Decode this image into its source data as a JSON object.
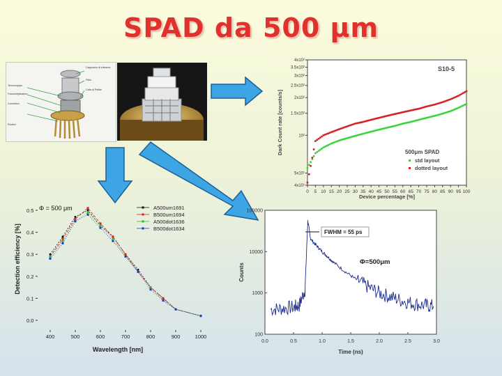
{
  "slide": {
    "title": "SPAD da 500 μm",
    "photo_labels": {
      "l1": "Cappuccio di chiusura",
      "l2": "Filtro",
      "l3": "Cella di Peltier",
      "l4": "Termocoppia",
      "l5": "Fotomoltiplicatore",
      "l6": "Connettori",
      "l7": "Reofori"
    },
    "colors": {
      "title": "#e0322c",
      "arrow_fill": "#3da5e4",
      "arrow_stroke": "#1d5f96",
      "navy": "#1a2a8c",
      "red": "#d42020",
      "green": "#3ad23a"
    },
    "icons": [
      "arrow-right-icon",
      "arrow-down-icon",
      "arrow-diagonal-icon"
    ]
  },
  "chart_data": [
    {
      "type": "scatter",
      "annotation": "S10-5",
      "xlabel": "Device percentage [%]",
      "ylabel": "Dark Count rate [counts/s]",
      "xlim": [
        0,
        100
      ],
      "ylim": [
        40,
        400
      ],
      "log_y": true,
      "x_ticks": [
        0,
        5,
        10,
        15,
        20,
        25,
        30,
        35,
        40,
        45,
        50,
        55,
        60,
        65,
        70,
        75,
        80,
        85,
        90,
        95,
        100
      ],
      "y_ticks": [
        {
          "v": 40,
          "label": "4x10¹"
        },
        {
          "v": 50,
          "label": "5x10¹"
        },
        {
          "v": 100,
          "label": "10²"
        },
        {
          "v": 150,
          "label": "1.5x10²"
        },
        {
          "v": 200,
          "label": "2x10²"
        },
        {
          "v": 250,
          "label": "2.5x10²"
        },
        {
          "v": 300,
          "label": "3x10²"
        },
        {
          "v": 350,
          "label": "3.5x10²"
        },
        {
          "v": 400,
          "label": "4x10²"
        }
      ],
      "legend_title": "500μm SPAD",
      "legend_position": "bottom-right",
      "series": [
        {
          "name": "std layout",
          "color": "#3ad23a",
          "x": [
            0,
            5,
            10,
            15,
            20,
            25,
            30,
            35,
            40,
            45,
            50,
            55,
            60,
            65,
            70,
            75,
            80,
            85,
            90,
            95,
            100
          ],
          "y": [
            55,
            72,
            80,
            86,
            91,
            95,
            99,
            103,
            107,
            111,
            115,
            119,
            124,
            128,
            133,
            138,
            143,
            149,
            156,
            166,
            178
          ]
        },
        {
          "name": "dotted layout",
          "color": "#d42020",
          "x": [
            0,
            5,
            10,
            15,
            20,
            25,
            30,
            35,
            40,
            45,
            50,
            55,
            60,
            65,
            70,
            75,
            80,
            85,
            90,
            95,
            100
          ],
          "y": [
            42,
            90,
            100,
            106,
            112,
            118,
            124,
            128,
            133,
            138,
            143,
            148,
            153,
            158,
            163,
            170,
            176,
            184,
            194,
            207,
            225
          ]
        }
      ]
    },
    {
      "type": "line",
      "annotation": "Φ = 500 μm",
      "xlabel": "Wavelength [nm]",
      "ylabel": "Detection efficiency [%]",
      "xlim": [
        350,
        1000
      ],
      "ylim": [
        0,
        0.5
      ],
      "x_ticks": [
        400,
        500,
        600,
        700,
        800,
        900,
        1000
      ],
      "y_ticks": [
        0.0,
        0.1,
        0.2,
        0.3,
        0.4,
        0.5
      ],
      "y_tick_labels": [
        "0.0",
        "0.1",
        "0.2",
        "0.3",
        "0.4",
        "0.5"
      ],
      "legend_position": "top-right",
      "series": [
        {
          "name": "A500um1691",
          "color": "#111111",
          "x": [
            400,
            450,
            500,
            550,
            600,
            650,
            700,
            750,
            800,
            850,
            900,
            1000
          ],
          "y": [
            0.3,
            0.38,
            0.47,
            0.5,
            0.43,
            0.38,
            0.3,
            0.23,
            0.15,
            0.1,
            0.05,
            0.02
          ]
        },
        {
          "name": "B500um1694",
          "color": "#d42020",
          "x": [
            400,
            450,
            500,
            550,
            600,
            650,
            700,
            750,
            800,
            850,
            900,
            1000
          ],
          "y": [
            0.29,
            0.37,
            0.46,
            0.51,
            0.44,
            0.38,
            0.3,
            0.22,
            0.15,
            0.1,
            0.05,
            0.02
          ]
        },
        {
          "name": "A500dot1636",
          "color": "#2db52d",
          "x": [
            400,
            450,
            500,
            550,
            600,
            650,
            700,
            750,
            800,
            850,
            900,
            1000
          ],
          "y": [
            0.29,
            0.36,
            0.45,
            0.49,
            0.43,
            0.37,
            0.29,
            0.22,
            0.15,
            0.09,
            0.05,
            0.02
          ]
        },
        {
          "name": "B500dot1634",
          "color": "#1a3ac8",
          "x": [
            400,
            450,
            500,
            550,
            600,
            650,
            700,
            750,
            800,
            850,
            900,
            1000
          ],
          "y": [
            0.28,
            0.35,
            0.45,
            0.48,
            0.42,
            0.36,
            0.29,
            0.22,
            0.14,
            0.09,
            0.05,
            0.02
          ]
        }
      ]
    },
    {
      "type": "line",
      "annotations": [
        "FWHM = 55 ps",
        "Φ=500μm"
      ],
      "xlabel": "Time (ns)",
      "ylabel": "Counts",
      "xlim": [
        0,
        3.0
      ],
      "ylim": [
        100,
        100000
      ],
      "log_y": true,
      "x_ticks": [
        0.0,
        0.5,
        1.0,
        1.5,
        2.0,
        2.5,
        3.0
      ],
      "x_tick_labels": [
        "0.0",
        "0.5",
        "1.0",
        "1.5",
        "2.0",
        "2.5",
        "3.0"
      ],
      "y_ticks": [
        100,
        1000,
        10000,
        100000
      ],
      "y_tick_labels": [
        "100",
        "1000",
        "10000",
        "100000"
      ],
      "series": [
        {
          "name": "",
          "color": "#1a2a8c",
          "x": [
            0.1,
            0.3,
            0.5,
            0.6,
            0.7,
            0.75,
            0.8,
            0.9,
            1.0,
            1.1,
            1.2,
            1.4,
            1.6,
            1.8,
            2.0,
            2.2,
            2.4,
            2.6,
            2.8,
            2.95
          ],
          "y": [
            400,
            420,
            450,
            500,
            1200,
            55000,
            20000,
            14000,
            10000,
            7500,
            5500,
            3300,
            2100,
            1400,
            1000,
            800,
            650,
            550,
            500,
            480
          ]
        }
      ]
    }
  ]
}
